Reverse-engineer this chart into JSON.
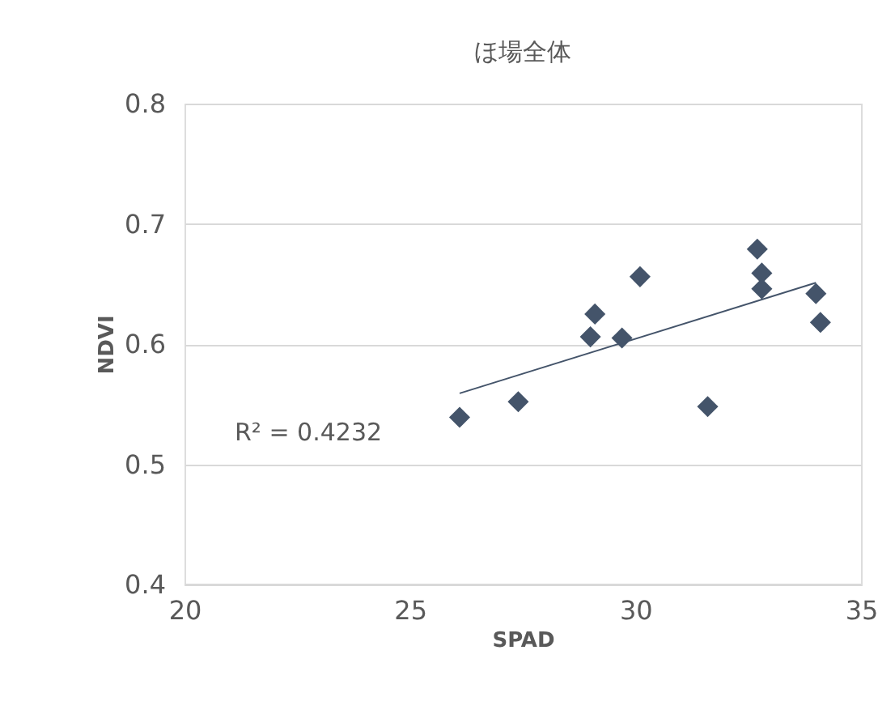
{
  "chart_data": {
    "type": "scatter",
    "title": "ほ場全体",
    "xlabel": "SPAD",
    "ylabel": "NDVI",
    "xlim": [
      20,
      35
    ],
    "xticks": [
      20,
      25,
      30,
      35
    ],
    "ylim": [
      0.4,
      0.8
    ],
    "yticks": [
      0.4,
      0.5,
      0.6,
      0.7,
      0.8
    ],
    "grid": "y",
    "series": [
      {
        "marker": "diamond",
        "color": "#44546a",
        "x": [
          26.1,
          27.4,
          29.0,
          29.1,
          29.7,
          30.1,
          31.6,
          32.7,
          32.8,
          32.8,
          34.0,
          34.1
        ],
        "values": [
          0.539,
          0.552,
          0.606,
          0.625,
          0.605,
          0.656,
          0.548,
          0.679,
          0.659,
          0.646,
          0.642,
          0.618
        ]
      },
      {
        "type": "line",
        "color": "#44546a",
        "line_style": "solid",
        "x": [
          26.1,
          34.0
        ],
        "values": [
          0.559,
          0.651
        ]
      }
    ],
    "annotations": [
      "R² = 0.4232"
    ]
  }
}
